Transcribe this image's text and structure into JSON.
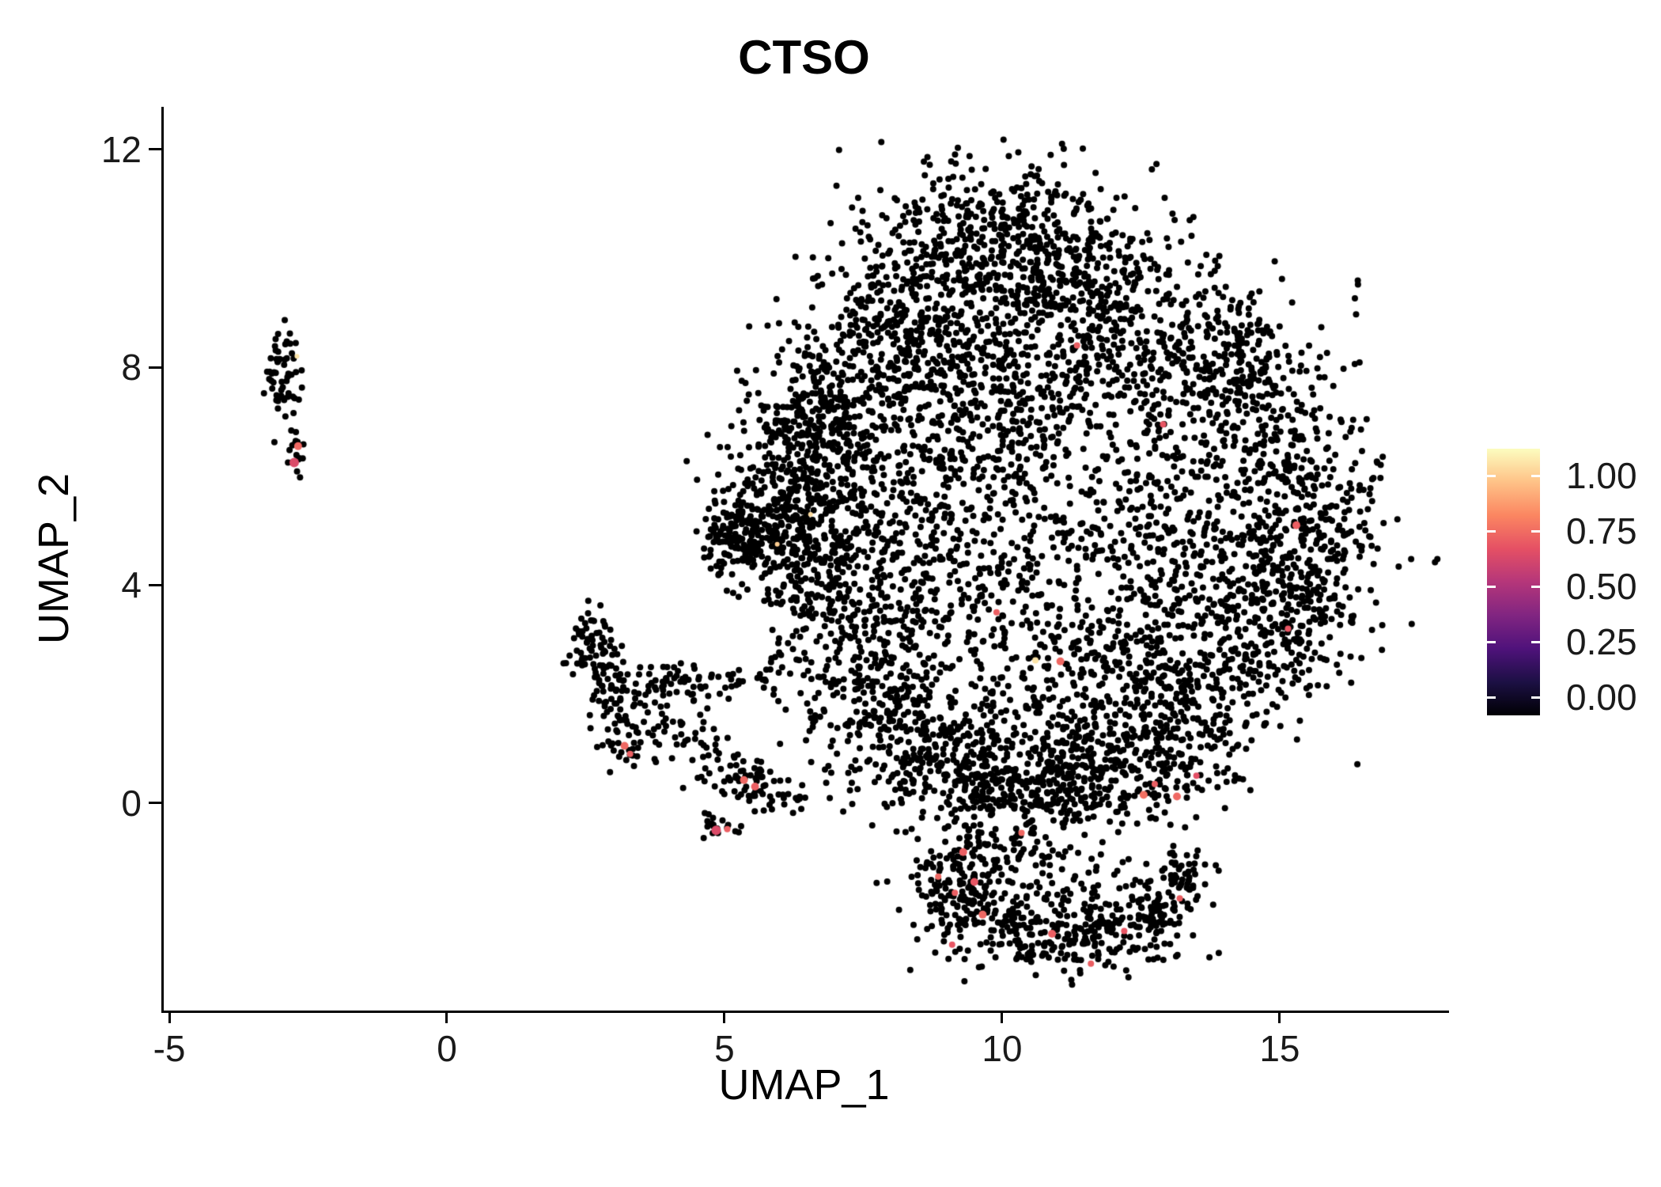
{
  "title": "CTSO",
  "axes": {
    "x": {
      "label": "UMAP_1",
      "ticks": [
        {
          "v": -5,
          "label": "-5"
        },
        {
          "v": 0,
          "label": "0"
        },
        {
          "v": 5,
          "label": "5"
        },
        {
          "v": 10,
          "label": "10"
        },
        {
          "v": 15,
          "label": "15"
        }
      ]
    },
    "y": {
      "label": "UMAP_2",
      "ticks": [
        {
          "v": 0,
          "label": "0"
        },
        {
          "v": 4,
          "label": "4"
        },
        {
          "v": 8,
          "label": "8"
        },
        {
          "v": 12,
          "label": "12"
        }
      ]
    }
  },
  "legend": {
    "entries": [
      {
        "label": "1.00",
        "v": 1.0
      },
      {
        "label": "0.75",
        "v": 0.75
      },
      {
        "label": "0.50",
        "v": 0.5
      },
      {
        "label": "0.25",
        "v": 0.25
      },
      {
        "label": "0.00",
        "v": 0.0
      }
    ],
    "colormap": [
      [
        0.0,
        "#000004"
      ],
      [
        0.125,
        "#1c1044"
      ],
      [
        0.25,
        "#4f127b"
      ],
      [
        0.375,
        "#812581"
      ],
      [
        0.5,
        "#b5367a"
      ],
      [
        0.625,
        "#e55064"
      ],
      [
        0.75,
        "#fb8661"
      ],
      [
        0.875,
        "#fec287"
      ],
      [
        1.0,
        "#fcfdbf"
      ]
    ]
  },
  "chart_data": {
    "type": "scatter",
    "title": "CTSO",
    "xlabel": "UMAP_1",
    "ylabel": "UMAP_2",
    "xlim": [
      -5.1,
      18.05
    ],
    "ylim": [
      -3.81,
      12.78
    ],
    "grid": false,
    "legend_position": "right",
    "point_color": "#000000",
    "point_radius_px": 4,
    "seed": 42,
    "cluster_format": [
      "cx",
      "cy",
      "sx",
      "sy",
      "n"
    ],
    "clusters": [
      [
        -3.0,
        8.0,
        0.16,
        0.42,
        55
      ],
      [
        -2.73,
        6.9,
        0.05,
        0.28,
        8
      ],
      [
        -2.73,
        6.33,
        0.08,
        0.16,
        12
      ],
      [
        2.6,
        2.95,
        0.22,
        0.35,
        55
      ],
      [
        2.95,
        2.2,
        0.28,
        0.35,
        50
      ],
      [
        3.3,
        1.4,
        0.33,
        0.38,
        60
      ],
      [
        3.95,
        2.15,
        0.45,
        0.22,
        40
      ],
      [
        4.8,
        2.25,
        0.4,
        0.18,
        30
      ],
      [
        5.9,
        2.4,
        0.3,
        0.14,
        12
      ],
      [
        4.2,
        1.15,
        0.4,
        0.28,
        28
      ],
      [
        5.0,
        0.6,
        0.35,
        0.28,
        40
      ],
      [
        5.55,
        0.25,
        0.3,
        0.18,
        30
      ],
      [
        6.15,
        0.1,
        0.22,
        0.13,
        14
      ],
      [
        4.95,
        -0.45,
        0.18,
        0.13,
        18
      ],
      [
        9.8,
        10.4,
        1.1,
        0.8,
        380
      ],
      [
        8.3,
        9.0,
        0.85,
        0.85,
        260
      ],
      [
        11.2,
        9.6,
        0.95,
        0.8,
        260
      ],
      [
        12.8,
        8.6,
        0.95,
        0.85,
        230
      ],
      [
        7.3,
        7.5,
        0.75,
        0.85,
        230
      ],
      [
        6.6,
        5.9,
        0.75,
        0.75,
        210
      ],
      [
        5.8,
        5.0,
        0.6,
        0.55,
        260
      ],
      [
        5.2,
        4.9,
        0.3,
        0.35,
        70
      ],
      [
        6.8,
        4.2,
        0.65,
        0.65,
        180
      ],
      [
        9.0,
        7.8,
        0.85,
        0.85,
        200
      ],
      [
        10.3,
        7.0,
        0.95,
        0.95,
        170
      ],
      [
        11.0,
        8.3,
        0.95,
        0.75,
        150
      ],
      [
        14.2,
        7.3,
        0.85,
        0.85,
        210
      ],
      [
        15.3,
        5.8,
        0.75,
        0.95,
        230
      ],
      [
        15.6,
        4.3,
        0.65,
        0.85,
        200
      ],
      [
        14.6,
        2.9,
        0.75,
        0.75,
        200
      ],
      [
        13.0,
        5.5,
        0.95,
        1.1,
        150
      ],
      [
        11.8,
        4.0,
        0.95,
        0.95,
        150
      ],
      [
        8.2,
        3.2,
        0.85,
        0.95,
        210
      ],
      [
        7.6,
        1.9,
        0.75,
        0.75,
        200
      ],
      [
        9.0,
        0.9,
        0.85,
        0.65,
        260
      ],
      [
        10.5,
        0.3,
        0.95,
        0.45,
        260
      ],
      [
        12.0,
        0.6,
        0.85,
        0.55,
        230
      ],
      [
        13.3,
        1.5,
        0.75,
        0.65,
        200
      ],
      [
        12.5,
        2.6,
        0.75,
        0.75,
        140
      ],
      [
        10.2,
        5.3,
        1.1,
        1.1,
        130
      ],
      [
        9.3,
        4.4,
        0.75,
        0.75,
        110
      ],
      [
        13.8,
        4.6,
        0.75,
        0.75,
        130
      ],
      [
        6.3,
        6.8,
        0.55,
        0.65,
        150
      ],
      [
        8.6,
        5.9,
        0.85,
        0.85,
        110
      ],
      [
        10.8,
        2.0,
        0.85,
        0.75,
        150
      ],
      [
        14.5,
        8.4,
        0.5,
        0.5,
        70
      ],
      [
        16.4,
        9.35,
        0.12,
        0.12,
        3
      ],
      [
        9.2,
        -1.6,
        0.45,
        0.55,
        170
      ],
      [
        10.3,
        -2.2,
        0.55,
        0.4,
        120
      ],
      [
        11.5,
        -2.5,
        0.55,
        0.33,
        110
      ],
      [
        12.6,
        -2.0,
        0.45,
        0.4,
        100
      ],
      [
        13.2,
        -1.3,
        0.3,
        0.35,
        60
      ],
      [
        10.0,
        -0.9,
        0.45,
        0.35,
        60
      ],
      [
        11.3,
        -1.4,
        0.6,
        0.45,
        50
      ]
    ],
    "highlight_format": [
      "x",
      "y",
      "value",
      "radius_px"
    ],
    "highlights": [
      [
        -2.68,
        6.55,
        0.68,
        5
      ],
      [
        -2.75,
        6.25,
        0.6,
        6
      ],
      [
        -2.7,
        8.2,
        0.95,
        3
      ],
      [
        3.2,
        1.05,
        0.68,
        5
      ],
      [
        3.3,
        0.9,
        0.66,
        4
      ],
      [
        5.35,
        0.42,
        0.68,
        5
      ],
      [
        5.55,
        0.3,
        0.66,
        5
      ],
      [
        4.85,
        -0.5,
        0.6,
        6
      ],
      [
        5.05,
        -0.48,
        0.66,
        4
      ],
      [
        6.55,
        5.3,
        0.93,
        3
      ],
      [
        5.95,
        4.75,
        0.9,
        3
      ],
      [
        9.9,
        3.5,
        0.66,
        4
      ],
      [
        10.6,
        2.62,
        0.95,
        4
      ],
      [
        11.05,
        2.6,
        0.68,
        5
      ],
      [
        11.35,
        8.4,
        0.66,
        4
      ],
      [
        12.9,
        6.95,
        0.64,
        4
      ],
      [
        15.3,
        5.1,
        0.66,
        5
      ],
      [
        15.15,
        3.2,
        0.64,
        4
      ],
      [
        12.55,
        0.15,
        0.7,
        5
      ],
      [
        13.15,
        0.12,
        0.68,
        5
      ],
      [
        12.75,
        0.35,
        0.66,
        4
      ],
      [
        9.3,
        -0.9,
        0.66,
        5
      ],
      [
        10.35,
        -0.55,
        0.68,
        4
      ],
      [
        9.5,
        -1.45,
        0.64,
        5
      ],
      [
        9.15,
        -1.65,
        0.66,
        4
      ],
      [
        9.65,
        -2.05,
        0.68,
        5
      ],
      [
        10.9,
        -2.4,
        0.66,
        5
      ],
      [
        12.2,
        -2.35,
        0.64,
        4
      ],
      [
        13.2,
        -1.75,
        0.66,
        4
      ],
      [
        9.1,
        -2.6,
        0.64,
        4
      ],
      [
        11.6,
        -2.95,
        0.66,
        4
      ],
      [
        13.5,
        0.5,
        0.62,
        4
      ],
      [
        8.85,
        -1.35,
        0.68,
        4
      ]
    ],
    "colors": {
      "points": "#000000",
      "axis": "#000000",
      "text": "#1a1a1a",
      "background": "#ffffff"
    }
  }
}
